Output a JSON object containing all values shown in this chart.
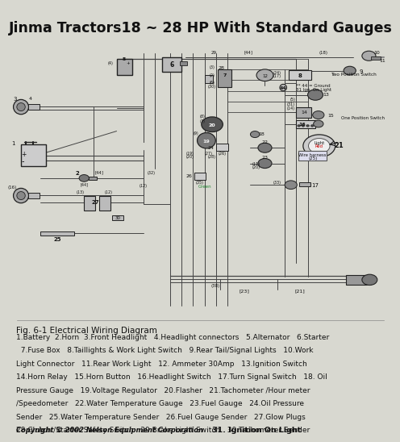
{
  "title": "Jinma Tractors18 ~ 28 HP With Standard Gauges",
  "title_fontsize": 12.5,
  "bg_color": "#d8d8d0",
  "diagram_bg": "#e8e8e0",
  "fig_caption": "Fig. 6-1 Electrical Wiring Diagram",
  "legend_lines": [
    "1.Battery  2.Horn  3.Front Headlight   4.Headlight connectors   5.Alternator   6.Starter",
    "  7.Fuse Box   8.Taillights & Work Light Switch   9.Rear Tail/Signal Lights   10.Work",
    "Light Connector   11.Rear Work Light   12. Ammeter 30Amp   13.Ignition Switch",
    "14.Horn Relay   15.Horn Button   16.Headlight Switch   17.Turn Signal Switch   18. Oil",
    "Pressure Gauge   19.Voltage Regulator   20.Flasher   21.Tachometer /Hour meter",
    "/Speedometer   22.Water Temperature Gauge   23.Fuel Gauge   24.Oil Pressure",
    "Sender   25.Water Temperature Sender   26.Fuel Gauge Sender   27.Glow Plugs",
    "28.Clutch /Starter Safety Switch   29.Brake Light Switch   30.Tachometer Sender"
  ],
  "copyright": "Copyright © 2002 Nelson Equipment Corporation",
  "ignition_note": "31. Ignition On Light",
  "text_color": "#111111",
  "legend_fontsize": 6.5,
  "caption_fontsize": 7.5,
  "copyright_fontsize": 6.0,
  "wire_color": "#444444",
  "comp_fill": "#c8c8c0",
  "comp_edge": "#222222"
}
